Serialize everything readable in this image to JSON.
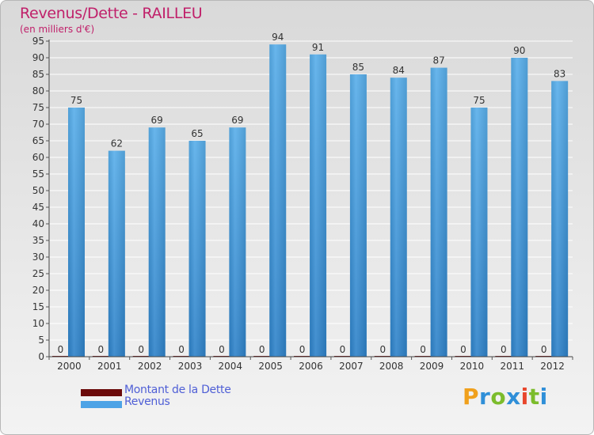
{
  "chart_data": {
    "type": "bar",
    "title": "Revenus/Dette - RAILLEU",
    "subtitle": "(en milliers d'€)",
    "xlabel": "",
    "ylabel": "",
    "ylim": [
      0,
      95
    ],
    "yticks": [
      0,
      5,
      10,
      15,
      20,
      25,
      30,
      35,
      40,
      45,
      50,
      55,
      60,
      65,
      70,
      75,
      80,
      85,
      90,
      95
    ],
    "grid": true,
    "categories": [
      "2000",
      "2001",
      "2002",
      "2003",
      "2004",
      "2005",
      "2006",
      "2007",
      "2008",
      "2009",
      "2010",
      "2011",
      "2012"
    ],
    "series": [
      {
        "name": "Montant de la Dette",
        "color": "#6b0a0a",
        "values": [
          0,
          0,
          0,
          0,
          0,
          0,
          0,
          0,
          0,
          0,
          0,
          0,
          0
        ]
      },
      {
        "name": "Revenus",
        "color": "#4da3e6",
        "values": [
          75,
          62,
          69,
          65,
          69,
          94,
          91,
          85,
          84,
          87,
          75,
          90,
          83
        ]
      }
    ],
    "legend_position": "bottom-left"
  },
  "brand": {
    "letters": [
      "P",
      "r",
      "o",
      "x",
      "i",
      "t",
      "i"
    ],
    "colors": [
      "#f0a01c",
      "#2f8fd8",
      "#7cbc2c",
      "#2f8fd8",
      "#e8462c",
      "#7cbc2c",
      "#2f8fd8"
    ]
  }
}
